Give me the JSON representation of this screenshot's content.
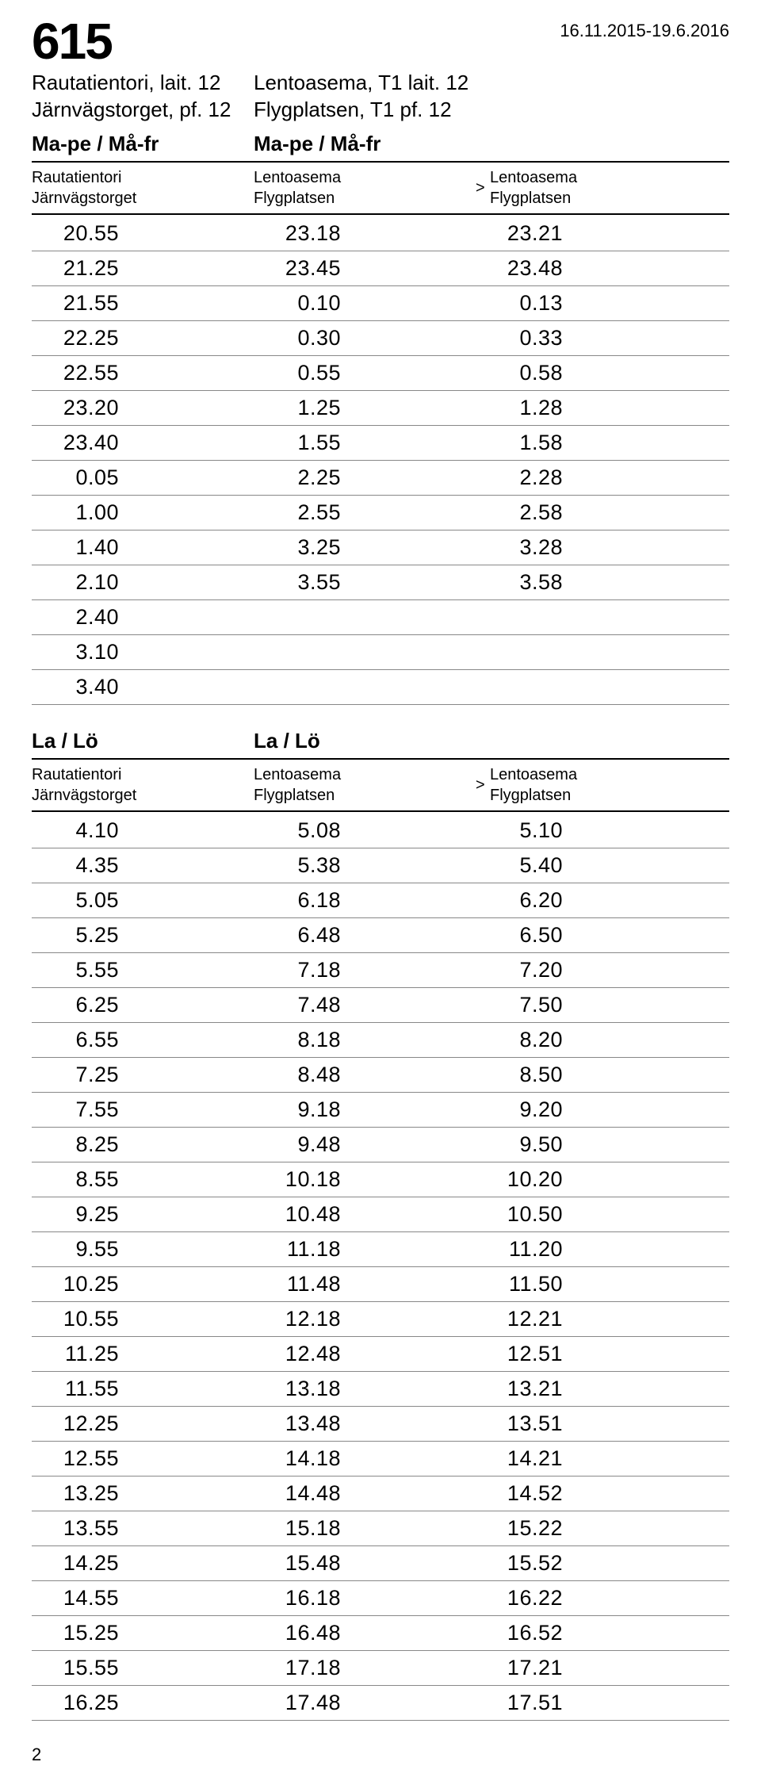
{
  "route_number": "615",
  "date_range": "16.11.2015-19.6.2016",
  "section1": {
    "stop_a": {
      "line1": "Rautatientori, lait. 12",
      "line2": "Järnvägstorget, pf. 12"
    },
    "stop_b": {
      "line1": "Lentoasema, T1 lait. 12",
      "line2": "Flygplatsen, T1 pf. 12"
    },
    "days_a": "Ma-pe / Må-fr",
    "days_b": "Ma-pe / Må-fr",
    "head_a": {
      "line1": "Rautatientori",
      "line2": "Järnvägstorget"
    },
    "head_b": {
      "line1": "Lentoasema",
      "line2": "Flygplatsen"
    },
    "head_c": {
      "arrow": ">",
      "line1": "Lentoasema",
      "line2": "Flygplatsen"
    },
    "rows": [
      [
        "20.55",
        "23.18",
        "23.21"
      ],
      [
        "21.25",
        "23.45",
        "23.48"
      ],
      [
        "21.55",
        "0.10",
        "0.13"
      ],
      [
        "22.25",
        "0.30",
        "0.33"
      ],
      [
        "22.55",
        "0.55",
        "0.58"
      ],
      [
        "23.20",
        "1.25",
        "1.28"
      ],
      [
        "23.40",
        "1.55",
        "1.58"
      ],
      [
        "0.05",
        "2.25",
        "2.28"
      ],
      [
        "1.00",
        "2.55",
        "2.58"
      ],
      [
        "1.40",
        "3.25",
        "3.28"
      ],
      [
        "2.10",
        "3.55",
        "3.58"
      ],
      [
        "2.40",
        "",
        ""
      ],
      [
        "3.10",
        "",
        ""
      ],
      [
        "3.40",
        "",
        ""
      ]
    ]
  },
  "section2": {
    "days_a": "La / Lö",
    "days_b": "La / Lö",
    "head_a": {
      "line1": "Rautatientori",
      "line2": "Järnvägstorget"
    },
    "head_b": {
      "line1": "Lentoasema",
      "line2": "Flygplatsen"
    },
    "head_c": {
      "arrow": ">",
      "line1": "Lentoasema",
      "line2": "Flygplatsen"
    },
    "rows": [
      [
        "4.10",
        "5.08",
        "5.10"
      ],
      [
        "4.35",
        "5.38",
        "5.40"
      ],
      [
        "5.05",
        "6.18",
        "6.20"
      ],
      [
        "5.25",
        "6.48",
        "6.50"
      ],
      [
        "5.55",
        "7.18",
        "7.20"
      ],
      [
        "6.25",
        "7.48",
        "7.50"
      ],
      [
        "6.55",
        "8.18",
        "8.20"
      ],
      [
        "7.25",
        "8.48",
        "8.50"
      ],
      [
        "7.55",
        "9.18",
        "9.20"
      ],
      [
        "8.25",
        "9.48",
        "9.50"
      ],
      [
        "8.55",
        "10.18",
        "10.20"
      ],
      [
        "9.25",
        "10.48",
        "10.50"
      ],
      [
        "9.55",
        "11.18",
        "11.20"
      ],
      [
        "10.25",
        "11.48",
        "11.50"
      ],
      [
        "10.55",
        "12.18",
        "12.21"
      ],
      [
        "11.25",
        "12.48",
        "12.51"
      ],
      [
        "11.55",
        "13.18",
        "13.21"
      ],
      [
        "12.25",
        "13.48",
        "13.51"
      ],
      [
        "12.55",
        "14.18",
        "14.21"
      ],
      [
        "13.25",
        "14.48",
        "14.52"
      ],
      [
        "13.55",
        "15.18",
        "15.22"
      ],
      [
        "14.25",
        "15.48",
        "15.52"
      ],
      [
        "14.55",
        "16.18",
        "16.22"
      ],
      [
        "15.25",
        "16.48",
        "16.52"
      ],
      [
        "15.55",
        "17.18",
        "17.21"
      ],
      [
        "16.25",
        "17.48",
        "17.51"
      ]
    ]
  },
  "page_number": "2"
}
